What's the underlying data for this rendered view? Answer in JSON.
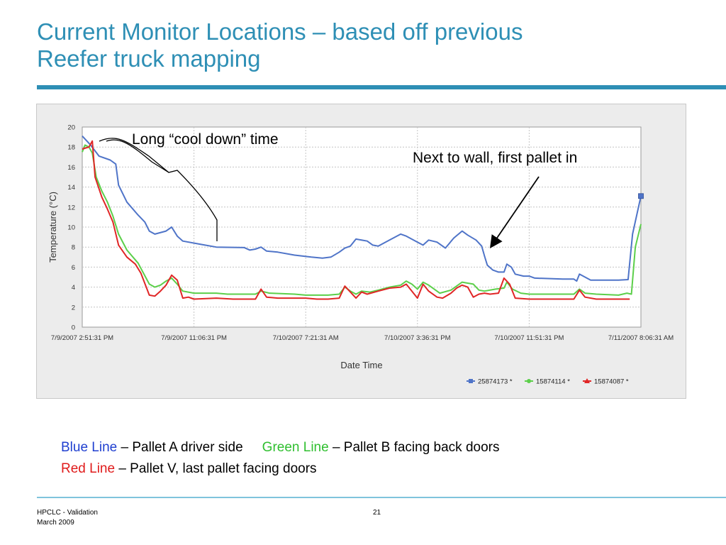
{
  "slide": {
    "title_line1": "Current Monitor Locations – based off previous",
    "title_line2": "Reefer truck mapping"
  },
  "annotations": {
    "cool_down": "Long “cool down” time",
    "next_to_wall": "Next to wall, first pallet in"
  },
  "legend_text": {
    "blue_label": "Blue Line",
    "blue_desc": " – Pallet A driver side",
    "green_label": "Green Line",
    "green_desc": " – Pallet B facing back doors",
    "red_label": "Red Line",
    "red_desc": " – Pallet V, last pallet facing doors"
  },
  "footer": {
    "org": "HPCLC - Validation",
    "date": "March  2009",
    "page": "21"
  },
  "colors": {
    "blue": "#4f74c8",
    "green": "#5ccf4a",
    "red": "#e02626",
    "title": "#2e8fb5"
  },
  "chart_data": {
    "type": "line",
    "xlabel": "Date Time",
    "ylabel": "Temperature (°C)",
    "ylim": [
      0,
      20
    ],
    "yticks": [
      0,
      2,
      4,
      6,
      8,
      10,
      12,
      14,
      16,
      18,
      20
    ],
    "xlim": [
      0,
      1
    ],
    "xtick_positions": [
      0,
      0.2,
      0.4,
      0.6,
      0.8,
      1.0
    ],
    "xtick_labels": [
      "7/9/2007 2:51:31 PM",
      "7/9/2007 11:06:31 PM",
      "7/10/2007 7:21:31 AM",
      "7/10/2007 3:36:31 PM",
      "7/10/2007 11:51:31 PM",
      "7/11/2007 8:06:31 AM"
    ],
    "grid": true,
    "legend_position": "bottom-right",
    "series": [
      {
        "name": "25874173 *",
        "color": "#4f74c8",
        "marker": "square",
        "points": [
          [
            0,
            19.1
          ],
          [
            0.015,
            18.2
          ],
          [
            0.03,
            17.1
          ],
          [
            0.05,
            16.7
          ],
          [
            0.06,
            16.3
          ],
          [
            0.065,
            14.2
          ],
          [
            0.08,
            12.5
          ],
          [
            0.1,
            11.2
          ],
          [
            0.112,
            10.5
          ],
          [
            0.12,
            9.6
          ],
          [
            0.13,
            9.3
          ],
          [
            0.15,
            9.6
          ],
          [
            0.16,
            10.0
          ],
          [
            0.17,
            9.1
          ],
          [
            0.18,
            8.6
          ],
          [
            0.21,
            8.3
          ],
          [
            0.24,
            8.0
          ],
          [
            0.29,
            7.95
          ],
          [
            0.3,
            7.7
          ],
          [
            0.31,
            7.8
          ],
          [
            0.32,
            8.0
          ],
          [
            0.33,
            7.6
          ],
          [
            0.35,
            7.5
          ],
          [
            0.38,
            7.2
          ],
          [
            0.41,
            7.0
          ],
          [
            0.43,
            6.9
          ],
          [
            0.445,
            7.0
          ],
          [
            0.46,
            7.5
          ],
          [
            0.47,
            7.9
          ],
          [
            0.48,
            8.1
          ],
          [
            0.49,
            8.8
          ],
          [
            0.51,
            8.6
          ],
          [
            0.52,
            8.2
          ],
          [
            0.53,
            8.1
          ],
          [
            0.55,
            8.7
          ],
          [
            0.57,
            9.3
          ],
          [
            0.58,
            9.1
          ],
          [
            0.6,
            8.5
          ],
          [
            0.61,
            8.2
          ],
          [
            0.62,
            8.7
          ],
          [
            0.635,
            8.5
          ],
          [
            0.65,
            7.9
          ],
          [
            0.665,
            8.9
          ],
          [
            0.68,
            9.6
          ],
          [
            0.69,
            9.2
          ],
          [
            0.705,
            8.7
          ],
          [
            0.715,
            8.1
          ],
          [
            0.72,
            7.1
          ],
          [
            0.725,
            6.2
          ],
          [
            0.735,
            5.7
          ],
          [
            0.745,
            5.5
          ],
          [
            0.755,
            5.5
          ],
          [
            0.76,
            6.3
          ],
          [
            0.768,
            6.0
          ],
          [
            0.775,
            5.3
          ],
          [
            0.79,
            5.1
          ],
          [
            0.8,
            5.1
          ],
          [
            0.81,
            4.9
          ],
          [
            0.86,
            4.8
          ],
          [
            0.88,
            4.8
          ],
          [
            0.885,
            4.6
          ],
          [
            0.89,
            5.3
          ],
          [
            0.9,
            5.0
          ],
          [
            0.91,
            4.7
          ],
          [
            0.96,
            4.7
          ],
          [
            0.977,
            4.75
          ],
          [
            0.985,
            9.3
          ],
          [
            1.0,
            13.1
          ]
        ]
      },
      {
        "name": "15874114 *",
        "color": "#5ccf4a",
        "marker": "circle",
        "points": [
          [
            0,
            17.5
          ],
          [
            0.005,
            18.2
          ],
          [
            0.012,
            18.0
          ],
          [
            0.018,
            17.4
          ],
          [
            0.025,
            15.0
          ],
          [
            0.035,
            13.6
          ],
          [
            0.045,
            12.5
          ],
          [
            0.055,
            11.1
          ],
          [
            0.065,
            9.3
          ],
          [
            0.08,
            7.7
          ],
          [
            0.1,
            6.4
          ],
          [
            0.12,
            4.3
          ],
          [
            0.13,
            4.0
          ],
          [
            0.14,
            4.2
          ],
          [
            0.15,
            4.6
          ],
          [
            0.16,
            4.9
          ],
          [
            0.17,
            4.3
          ],
          [
            0.18,
            3.6
          ],
          [
            0.2,
            3.4
          ],
          [
            0.24,
            3.4
          ],
          [
            0.26,
            3.3
          ],
          [
            0.3,
            3.3
          ],
          [
            0.31,
            3.3
          ],
          [
            0.32,
            3.6
          ],
          [
            0.335,
            3.4
          ],
          [
            0.38,
            3.3
          ],
          [
            0.4,
            3.2
          ],
          [
            0.42,
            3.2
          ],
          [
            0.44,
            3.2
          ],
          [
            0.46,
            3.3
          ],
          [
            0.47,
            4.0
          ],
          [
            0.48,
            3.6
          ],
          [
            0.49,
            3.3
          ],
          [
            0.5,
            3.6
          ],
          [
            0.515,
            3.5
          ],
          [
            0.53,
            3.7
          ],
          [
            0.55,
            4.0
          ],
          [
            0.57,
            4.2
          ],
          [
            0.58,
            4.6
          ],
          [
            0.59,
            4.3
          ],
          [
            0.6,
            3.8
          ],
          [
            0.61,
            4.5
          ],
          [
            0.62,
            4.2
          ],
          [
            0.64,
            3.4
          ],
          [
            0.66,
            3.7
          ],
          [
            0.68,
            4.5
          ],
          [
            0.7,
            4.3
          ],
          [
            0.71,
            3.7
          ],
          [
            0.72,
            3.6
          ],
          [
            0.74,
            3.8
          ],
          [
            0.755,
            3.9
          ],
          [
            0.76,
            4.5
          ],
          [
            0.77,
            3.8
          ],
          [
            0.785,
            3.4
          ],
          [
            0.8,
            3.3
          ],
          [
            0.85,
            3.3
          ],
          [
            0.88,
            3.3
          ],
          [
            0.89,
            3.8
          ],
          [
            0.9,
            3.4
          ],
          [
            0.92,
            3.3
          ],
          [
            0.96,
            3.2
          ],
          [
            0.975,
            3.4
          ],
          [
            0.983,
            3.3
          ],
          [
            0.99,
            8.0
          ],
          [
            1.0,
            10.3
          ]
        ]
      },
      {
        "name": "15874087 *",
        "color": "#e02626",
        "marker": "triangle",
        "points": [
          [
            0,
            17.8
          ],
          [
            0.012,
            18.0
          ],
          [
            0.018,
            18.6
          ],
          [
            0.023,
            15.0
          ],
          [
            0.035,
            13.0
          ],
          [
            0.045,
            11.8
          ],
          [
            0.055,
            10.5
          ],
          [
            0.065,
            8.2
          ],
          [
            0.08,
            7.0
          ],
          [
            0.095,
            6.3
          ],
          [
            0.105,
            5.4
          ],
          [
            0.12,
            3.2
          ],
          [
            0.13,
            3.1
          ],
          [
            0.14,
            3.6
          ],
          [
            0.15,
            4.2
          ],
          [
            0.16,
            5.2
          ],
          [
            0.17,
            4.7
          ],
          [
            0.18,
            2.9
          ],
          [
            0.19,
            3.0
          ],
          [
            0.2,
            2.8
          ],
          [
            0.24,
            2.9
          ],
          [
            0.27,
            2.8
          ],
          [
            0.3,
            2.8
          ],
          [
            0.31,
            2.8
          ],
          [
            0.32,
            3.8
          ],
          [
            0.33,
            3.0
          ],
          [
            0.35,
            2.9
          ],
          [
            0.4,
            2.9
          ],
          [
            0.42,
            2.8
          ],
          [
            0.44,
            2.8
          ],
          [
            0.46,
            2.9
          ],
          [
            0.47,
            4.1
          ],
          [
            0.48,
            3.5
          ],
          [
            0.49,
            2.9
          ],
          [
            0.5,
            3.5
          ],
          [
            0.51,
            3.3
          ],
          [
            0.53,
            3.6
          ],
          [
            0.55,
            3.9
          ],
          [
            0.57,
            4.0
          ],
          [
            0.58,
            4.3
          ],
          [
            0.59,
            3.6
          ],
          [
            0.6,
            2.9
          ],
          [
            0.61,
            4.3
          ],
          [
            0.62,
            3.6
          ],
          [
            0.635,
            3.0
          ],
          [
            0.645,
            2.9
          ],
          [
            0.66,
            3.4
          ],
          [
            0.67,
            3.9
          ],
          [
            0.68,
            4.2
          ],
          [
            0.69,
            4.0
          ],
          [
            0.7,
            3.0
          ],
          [
            0.71,
            3.3
          ],
          [
            0.72,
            3.4
          ],
          [
            0.73,
            3.3
          ],
          [
            0.745,
            3.4
          ],
          [
            0.755,
            4.9
          ],
          [
            0.765,
            4.3
          ],
          [
            0.775,
            2.9
          ],
          [
            0.8,
            2.8
          ],
          [
            0.85,
            2.8
          ],
          [
            0.88,
            2.8
          ],
          [
            0.89,
            3.7
          ],
          [
            0.9,
            3.0
          ],
          [
            0.92,
            2.8
          ],
          [
            0.95,
            2.8
          ],
          [
            0.98,
            2.8
          ]
        ]
      }
    ]
  }
}
